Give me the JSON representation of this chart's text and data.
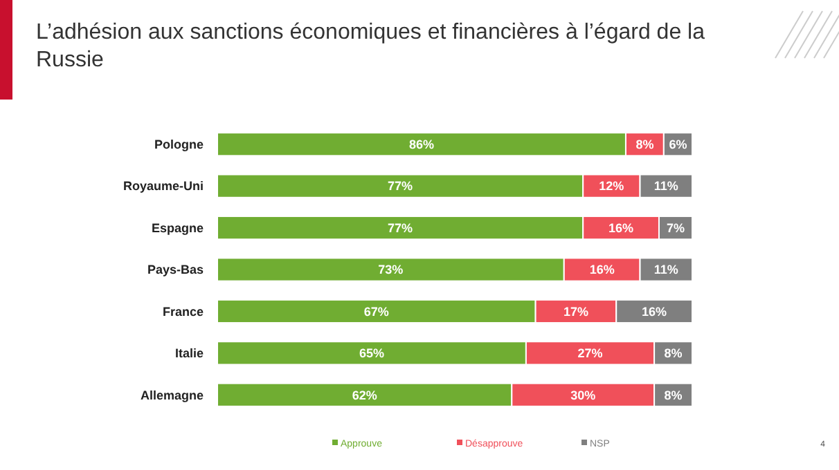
{
  "chart_data": {
    "type": "bar",
    "orientation": "horizontal",
    "stacked": true,
    "title": "L’adhésion aux sanctions économiques et financières à l’égard de la Russie",
    "categories": [
      "Pologne",
      "Royaume-Uni",
      "Espagne",
      "Pays-Bas",
      "France",
      "Italie",
      "Allemagne"
    ],
    "series": [
      {
        "name": "Approuve",
        "color": "#70ad32",
        "values": [
          86,
          77,
          77,
          73,
          67,
          65,
          62
        ],
        "value_labels": [
          "86%",
          "77%",
          "77%",
          "73%",
          "67%",
          "65%",
          "62%"
        ]
      },
      {
        "name": "Désapprouve",
        "color": "#f0505a",
        "values": [
          8,
          12,
          16,
          16,
          17,
          27,
          30
        ],
        "value_labels": [
          "8%",
          "12%",
          "16%",
          "16%",
          "17%",
          "27%",
          "30%"
        ]
      },
      {
        "name": "NSP",
        "color": "#7f7f7f",
        "values": [
          6,
          11,
          7,
          11,
          16,
          8,
          8
        ],
        "value_labels": [
          "6%",
          "11%",
          "7%",
          "11%",
          "16%",
          "8%",
          "8%"
        ]
      }
    ],
    "legend": "bottom",
    "annotations": [
      "4"
    ]
  }
}
